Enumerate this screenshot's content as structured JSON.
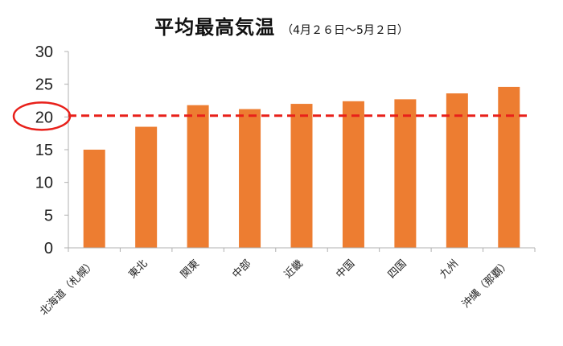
{
  "chart_data": {
    "type": "bar",
    "title": "平均最高気温",
    "subtitle": "（4月２６日～5月２日）",
    "categories": [
      "北海道（札幌）",
      "東北",
      "関東",
      "中部",
      "近畿",
      "中国",
      "四国",
      "九州",
      "沖縄（那覇）"
    ],
    "values": [
      15.0,
      18.5,
      21.8,
      21.2,
      22.0,
      22.4,
      22.7,
      23.6,
      24.6
    ],
    "ylim": [
      0,
      30
    ],
    "yticks": [
      0,
      5,
      10,
      15,
      20,
      25,
      30
    ],
    "reference_line": {
      "value": 20.2,
      "style": "dashed",
      "color": "#e8201a"
    },
    "highlighted_tick": 20,
    "bar_color": "#ed7d31",
    "grid": false
  }
}
